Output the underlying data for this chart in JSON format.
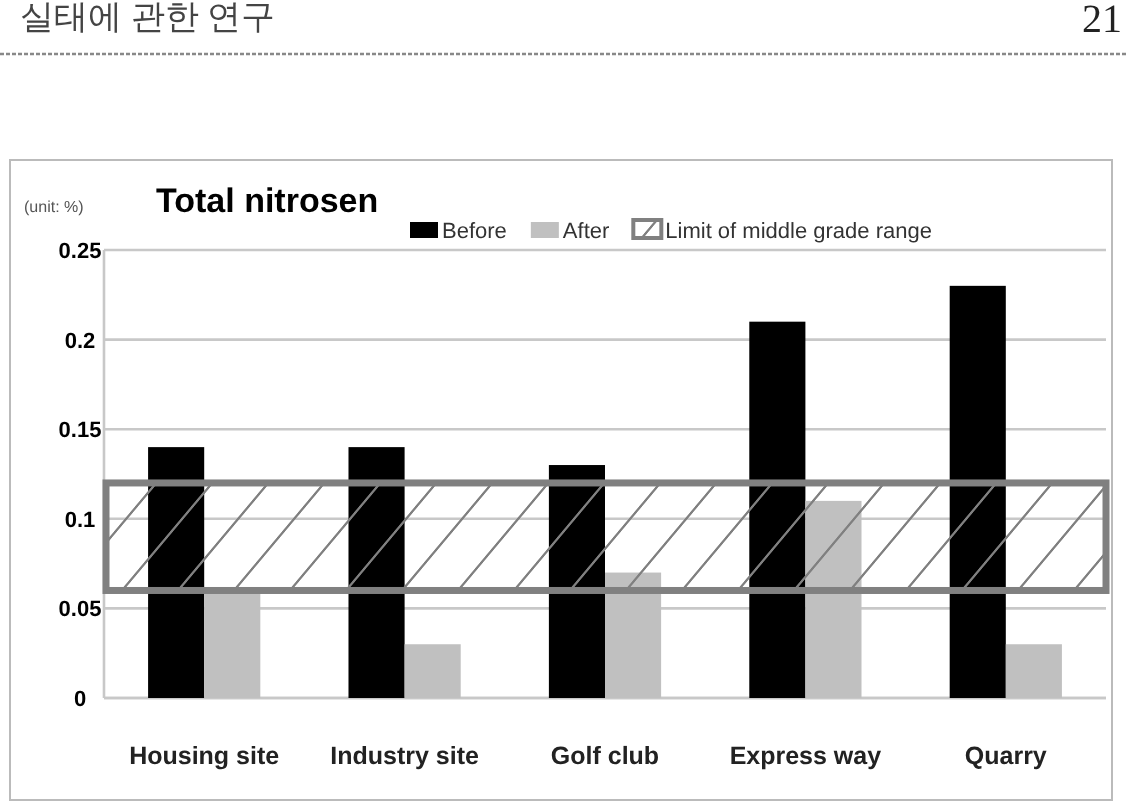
{
  "chart_data": {
    "type": "bar",
    "title": "Total nitrosen",
    "ylabel": "(unit: %)",
    "annotations": [
      "실태에 관한 연구",
      "21"
    ],
    "categories": [
      "Housing site",
      "Industry site",
      "Golf club",
      "Express way",
      "Quarry"
    ],
    "series": [
      {
        "name": "Before",
        "color": "#000000",
        "values": [
          0.14,
          0.14,
          0.13,
          0.21,
          0.23
        ]
      },
      {
        "name": "After",
        "color": "#c0c0c0",
        "values": [
          0.06,
          0.03,
          0.07,
          0.11,
          0.03
        ]
      }
    ],
    "bands": [
      {
        "axis": "y",
        "from": 0.06,
        "to": 0.12,
        "label": "Limit of middle grade range",
        "color": "#808080"
      }
    ],
    "ylim": [
      0,
      0.25
    ],
    "yticks": [
      0,
      0.05,
      0.1,
      0.15,
      0.2,
      0.25
    ],
    "grid": "y",
    "legend": "top"
  }
}
